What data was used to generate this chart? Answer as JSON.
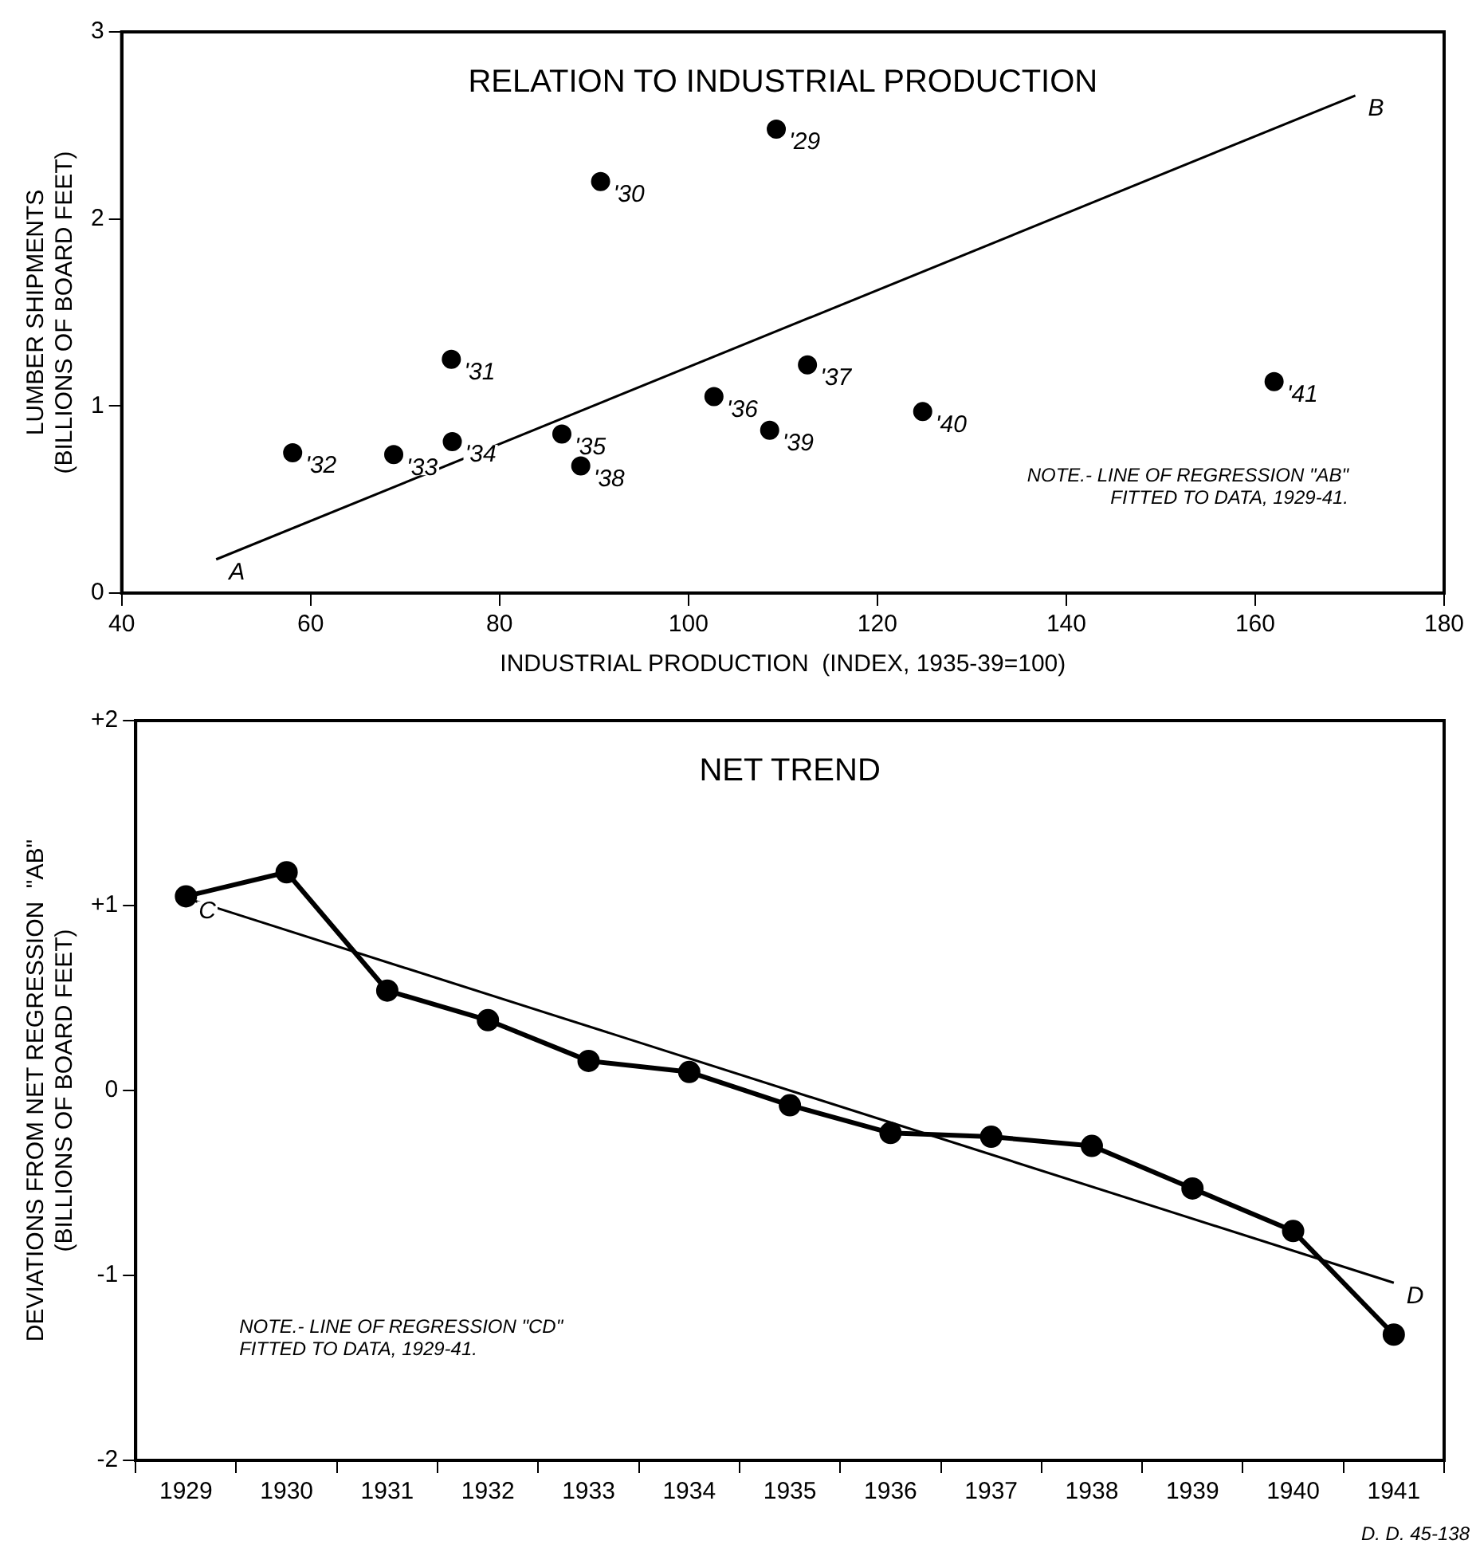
{
  "chart_data": [
    {
      "type": "scatter",
      "title": "RELATION TO INDUSTRIAL PRODUCTION",
      "xlabel": "INDUSTRIAL PRODUCTION  (INDEX, 1935-39=100)",
      "ylabel": "LUMBER SHIPMENTS\n(BILLIONS OF BOARD FEET)",
      "xlim": [
        40,
        180
      ],
      "xticks": [
        40,
        60,
        80,
        100,
        120,
        140,
        160,
        180
      ],
      "ylim": [
        0,
        3
      ],
      "yticks": [
        0,
        1,
        2,
        3
      ],
      "grid": false,
      "legend": false,
      "series": [
        {
          "color": "#000000",
          "marker": "circle",
          "x": [
            109.3,
            90.7,
            74.9,
            58.1,
            68.8,
            75.0,
            86.6,
            102.7,
            112.6,
            88.6,
            108.6,
            124.8,
            162.0
          ],
          "values": [
            2.48,
            2.2,
            1.25,
            0.75,
            0.74,
            0.81,
            0.85,
            1.05,
            1.22,
            0.68,
            0.87,
            0.97,
            1.13
          ]
        },
        {
          "type": "line",
          "color": "#000000",
          "marker": "none",
          "x": [
            50,
            170.6
          ],
          "values": [
            0.18,
            2.66
          ]
        }
      ],
      "annotations": [
        {
          "text": "'29",
          "x": 109.3,
          "y": 2.48
        },
        {
          "text": "'30",
          "x": 90.7,
          "y": 2.2
        },
        {
          "text": "'31",
          "x": 74.9,
          "y": 1.25
        },
        {
          "text": "'32",
          "x": 58.1,
          "y": 0.75
        },
        {
          "text": "'33",
          "x": 68.8,
          "y": 0.74
        },
        {
          "text": "'34",
          "x": 75.0,
          "y": 0.81
        },
        {
          "text": "'35",
          "x": 86.6,
          "y": 0.85
        },
        {
          "text": "'36",
          "x": 102.7,
          "y": 1.05
        },
        {
          "text": "'37",
          "x": 112.6,
          "y": 1.22
        },
        {
          "text": "'38",
          "x": 88.6,
          "y": 0.68
        },
        {
          "text": "'39",
          "x": 108.6,
          "y": 0.87
        },
        {
          "text": "'40",
          "x": 124.8,
          "y": 0.97
        },
        {
          "text": "'41",
          "x": 162.0,
          "y": 1.13
        },
        {
          "text": "A",
          "x": 50,
          "y": 0.18
        },
        {
          "text": "B",
          "x": 170.6,
          "y": 2.66
        },
        "NOTE.- LINE OF REGRESSION \"AB\"\nFITTED TO DATA, 1929-41."
      ]
    },
    {
      "type": "line",
      "title": "NET TREND",
      "ylabel": "DEVIATIONS FROM NET REGRESSION  \"AB\"\n(BILLIONS OF BOARD FEET)",
      "categories": [
        "1929",
        "1930",
        "1931",
        "1932",
        "1933",
        "1934",
        "1935",
        "1936",
        "1937",
        "1938",
        "1939",
        "1940",
        "1941"
      ],
      "ylim": [
        -2,
        2
      ],
      "yticks": [
        {
          "value": -2,
          "label": "-2"
        },
        {
          "value": -1,
          "label": "-1"
        },
        {
          "value": 0,
          "label": "0"
        },
        {
          "value": 1,
          "label": "+1"
        },
        {
          "value": 2,
          "label": "+2"
        }
      ],
      "grid": false,
      "legend": false,
      "series": [
        {
          "color": "#000000",
          "marker": "circle",
          "values": [
            1.05,
            1.18,
            0.54,
            0.38,
            0.16,
            0.1,
            -0.08,
            -0.23,
            -0.25,
            -0.3,
            -0.53,
            -0.76,
            -1.32
          ]
        },
        {
          "color": "#000000",
          "marker": "none",
          "values": [
            1.04,
            null,
            null,
            null,
            null,
            null,
            null,
            null,
            null,
            null,
            null,
            null,
            -1.04
          ]
        }
      ],
      "annotations": [
        {
          "text": "C",
          "x": "1929",
          "y": 1.04
        },
        {
          "text": "D",
          "x": "1941",
          "y": -1.04
        },
        "NOTE.- LINE OF REGRESSION \"CD\"\nFITTED TO DATA, 1929-41.",
        "D. D. 45-138"
      ]
    }
  ]
}
